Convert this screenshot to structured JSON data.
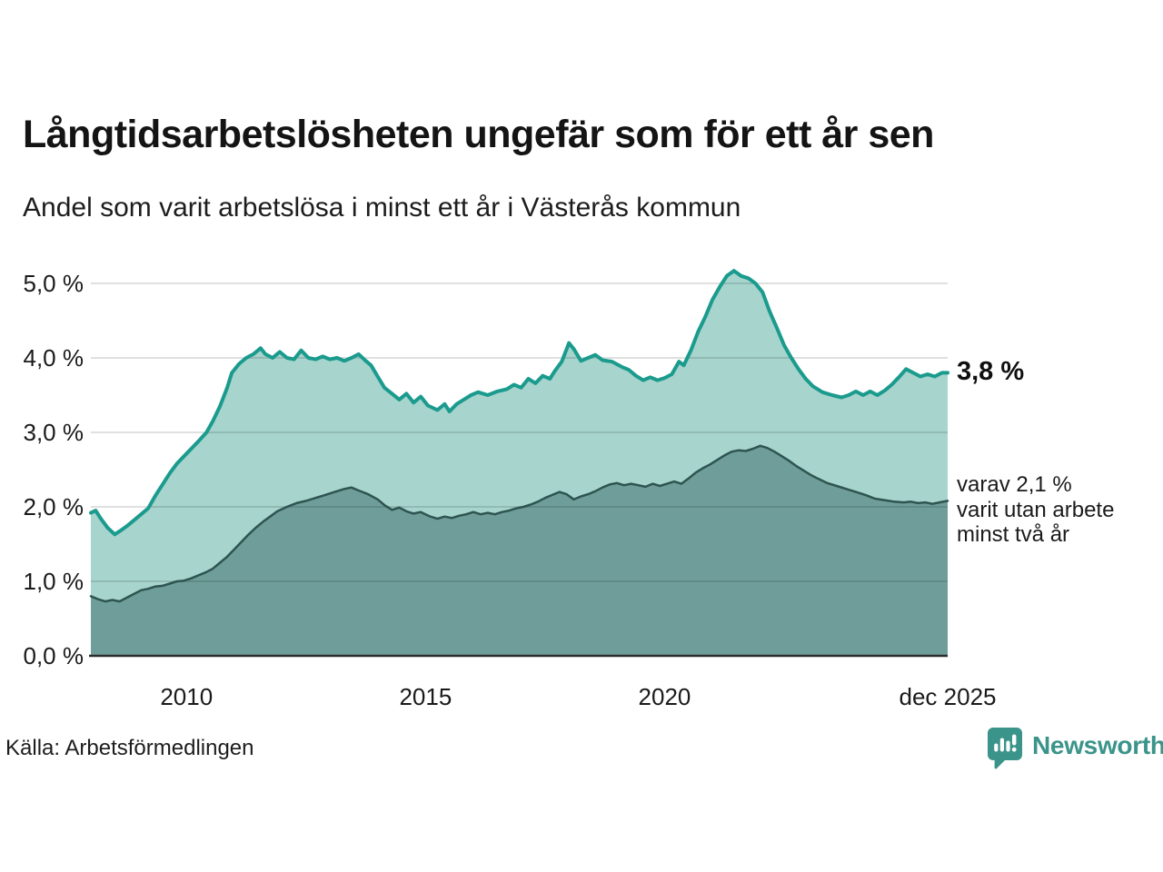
{
  "header": {
    "title": "Långtidsarbetslösheten ungefär som för ett år sen",
    "subtitle": "Andel som varit arbetslösa i minst ett år i Västerås kommun"
  },
  "footer": {
    "source_label": "Källa: Arbetsförmedlingen",
    "brand": {
      "name": "Newsworthy",
      "icon": "newsworthy-speech-bubble-bar-chart-icon",
      "color": "#3b948a"
    }
  },
  "chart_data": {
    "type": "area",
    "title": "Långtidsarbetslösheten ungefär som för ett år sen",
    "subtitle": "Andel som varit arbetslösa i minst ett år i Västerås kommun",
    "grid": true,
    "legend_position": "none",
    "x_axis": {
      "range": [
        2008,
        2025.92
      ],
      "ticks": [
        {
          "label": "2010",
          "year": 2010
        },
        {
          "label": "2015",
          "year": 2015
        },
        {
          "label": "2020",
          "year": 2020
        },
        {
          "label": "dec 2025",
          "year": 2025.92
        }
      ]
    },
    "y_axis": {
      "range": [
        0,
        5.3
      ],
      "unit": "%",
      "ticks": [
        {
          "label": "0,0 %",
          "value": 0
        },
        {
          "label": "1,0 %",
          "value": 1
        },
        {
          "label": "2,0 %",
          "value": 2
        },
        {
          "label": "3,0 %",
          "value": 3
        },
        {
          "label": "4,0 %",
          "value": 4
        },
        {
          "label": "5,0 %",
          "value": 5
        }
      ]
    },
    "annotations": [
      {
        "text": "3,8 %",
        "bold": true,
        "anchor_value": 3.8
      },
      {
        "lines": [
          "varav 2,1 %",
          "varit utan arbete",
          "minst två år"
        ],
        "anchor_value": 2.1
      }
    ],
    "series": [
      {
        "name": "Andel arbetslösa minst ett år",
        "line_color": "#1a9b8d",
        "fill_color": "#a7d4cd",
        "line_width": 4,
        "latest_value": 3.8,
        "points": [
          [
            2008.0,
            1.92
          ],
          [
            2008.1,
            1.95
          ],
          [
            2008.2,
            1.85
          ],
          [
            2008.35,
            1.72
          ],
          [
            2008.5,
            1.63
          ],
          [
            2008.62,
            1.68
          ],
          [
            2008.75,
            1.74
          ],
          [
            2008.9,
            1.82
          ],
          [
            2009.05,
            1.9
          ],
          [
            2009.2,
            1.98
          ],
          [
            2009.35,
            2.15
          ],
          [
            2009.5,
            2.3
          ],
          [
            2009.65,
            2.45
          ],
          [
            2009.8,
            2.58
          ],
          [
            2009.95,
            2.68
          ],
          [
            2010.1,
            2.78
          ],
          [
            2010.25,
            2.88
          ],
          [
            2010.42,
            3.0
          ],
          [
            2010.55,
            3.15
          ],
          [
            2010.7,
            3.35
          ],
          [
            2010.85,
            3.6
          ],
          [
            2010.95,
            3.8
          ],
          [
            2011.1,
            3.92
          ],
          [
            2011.25,
            4.0
          ],
          [
            2011.4,
            4.05
          ],
          [
            2011.55,
            4.13
          ],
          [
            2011.65,
            4.05
          ],
          [
            2011.8,
            4.0
          ],
          [
            2011.95,
            4.08
          ],
          [
            2012.1,
            4.0
          ],
          [
            2012.25,
            3.98
          ],
          [
            2012.4,
            4.1
          ],
          [
            2012.55,
            4.0
          ],
          [
            2012.7,
            3.98
          ],
          [
            2012.85,
            4.02
          ],
          [
            2013.0,
            3.98
          ],
          [
            2013.15,
            4.0
          ],
          [
            2013.3,
            3.96
          ],
          [
            2013.45,
            4.0
          ],
          [
            2013.6,
            4.05
          ],
          [
            2013.75,
            3.96
          ],
          [
            2013.86,
            3.9
          ],
          [
            2014.0,
            3.75
          ],
          [
            2014.14,
            3.6
          ],
          [
            2014.3,
            3.52
          ],
          [
            2014.45,
            3.44
          ],
          [
            2014.6,
            3.52
          ],
          [
            2014.75,
            3.4
          ],
          [
            2014.9,
            3.48
          ],
          [
            2015.05,
            3.36
          ],
          [
            2015.25,
            3.3
          ],
          [
            2015.4,
            3.38
          ],
          [
            2015.5,
            3.28
          ],
          [
            2015.65,
            3.38
          ],
          [
            2015.8,
            3.44
          ],
          [
            2015.95,
            3.5
          ],
          [
            2016.1,
            3.54
          ],
          [
            2016.3,
            3.5
          ],
          [
            2016.5,
            3.55
          ],
          [
            2016.7,
            3.58
          ],
          [
            2016.85,
            3.64
          ],
          [
            2017.0,
            3.6
          ],
          [
            2017.15,
            3.72
          ],
          [
            2017.3,
            3.66
          ],
          [
            2017.45,
            3.76
          ],
          [
            2017.6,
            3.72
          ],
          [
            2017.7,
            3.82
          ],
          [
            2017.85,
            3.95
          ],
          [
            2018.0,
            4.2
          ],
          [
            2018.1,
            4.12
          ],
          [
            2018.25,
            3.96
          ],
          [
            2018.4,
            4.0
          ],
          [
            2018.55,
            4.04
          ],
          [
            2018.7,
            3.97
          ],
          [
            2018.9,
            3.95
          ],
          [
            2019.1,
            3.88
          ],
          [
            2019.25,
            3.84
          ],
          [
            2019.4,
            3.76
          ],
          [
            2019.55,
            3.7
          ],
          [
            2019.7,
            3.74
          ],
          [
            2019.85,
            3.7
          ],
          [
            2020.0,
            3.73
          ],
          [
            2020.15,
            3.78
          ],
          [
            2020.3,
            3.95
          ],
          [
            2020.4,
            3.9
          ],
          [
            2020.55,
            4.1
          ],
          [
            2020.7,
            4.35
          ],
          [
            2020.85,
            4.55
          ],
          [
            2021.0,
            4.78
          ],
          [
            2021.15,
            4.95
          ],
          [
            2021.3,
            5.1
          ],
          [
            2021.45,
            5.17
          ],
          [
            2021.6,
            5.1
          ],
          [
            2021.75,
            5.07
          ],
          [
            2021.9,
            5.0
          ],
          [
            2022.05,
            4.88
          ],
          [
            2022.2,
            4.62
          ],
          [
            2022.35,
            4.4
          ],
          [
            2022.5,
            4.17
          ],
          [
            2022.65,
            4.0
          ],
          [
            2022.8,
            3.85
          ],
          [
            2022.95,
            3.72
          ],
          [
            2023.1,
            3.62
          ],
          [
            2023.3,
            3.54
          ],
          [
            2023.5,
            3.5
          ],
          [
            2023.7,
            3.47
          ],
          [
            2023.85,
            3.5
          ],
          [
            2024.0,
            3.55
          ],
          [
            2024.15,
            3.5
          ],
          [
            2024.3,
            3.55
          ],
          [
            2024.45,
            3.5
          ],
          [
            2024.6,
            3.56
          ],
          [
            2024.75,
            3.64
          ],
          [
            2024.9,
            3.74
          ],
          [
            2025.05,
            3.85
          ],
          [
            2025.2,
            3.8
          ],
          [
            2025.35,
            3.75
          ],
          [
            2025.5,
            3.78
          ],
          [
            2025.65,
            3.75
          ],
          [
            2025.8,
            3.8
          ],
          [
            2025.92,
            3.8
          ]
        ]
      },
      {
        "name": "varav utan arbete minst två år",
        "line_color": "#2e5450",
        "fill_color": "#6f9e9a",
        "line_width": 2.5,
        "latest_value": 2.1,
        "points": [
          [
            2008.0,
            0.8
          ],
          [
            2008.15,
            0.76
          ],
          [
            2008.3,
            0.73
          ],
          [
            2008.45,
            0.75
          ],
          [
            2008.6,
            0.73
          ],
          [
            2008.75,
            0.78
          ],
          [
            2008.9,
            0.83
          ],
          [
            2009.05,
            0.88
          ],
          [
            2009.2,
            0.9
          ],
          [
            2009.35,
            0.93
          ],
          [
            2009.5,
            0.94
          ],
          [
            2009.65,
            0.97
          ],
          [
            2009.8,
            1.0
          ],
          [
            2009.95,
            1.01
          ],
          [
            2010.1,
            1.04
          ],
          [
            2010.25,
            1.08
          ],
          [
            2010.4,
            1.12
          ],
          [
            2010.55,
            1.17
          ],
          [
            2010.7,
            1.25
          ],
          [
            2010.85,
            1.33
          ],
          [
            2011.0,
            1.43
          ],
          [
            2011.15,
            1.53
          ],
          [
            2011.3,
            1.63
          ],
          [
            2011.45,
            1.72
          ],
          [
            2011.6,
            1.8
          ],
          [
            2011.75,
            1.87
          ],
          [
            2011.9,
            1.94
          ],
          [
            2012.1,
            2.0
          ],
          [
            2012.3,
            2.05
          ],
          [
            2012.5,
            2.08
          ],
          [
            2012.7,
            2.12
          ],
          [
            2012.9,
            2.16
          ],
          [
            2013.1,
            2.2
          ],
          [
            2013.3,
            2.24
          ],
          [
            2013.45,
            2.26
          ],
          [
            2013.6,
            2.22
          ],
          [
            2013.8,
            2.17
          ],
          [
            2014.0,
            2.1
          ],
          [
            2014.15,
            2.02
          ],
          [
            2014.3,
            1.96
          ],
          [
            2014.45,
            1.99
          ],
          [
            2014.6,
            1.94
          ],
          [
            2014.75,
            1.91
          ],
          [
            2014.9,
            1.93
          ],
          [
            2015.1,
            1.87
          ],
          [
            2015.25,
            1.84
          ],
          [
            2015.4,
            1.87
          ],
          [
            2015.55,
            1.85
          ],
          [
            2015.7,
            1.88
          ],
          [
            2015.85,
            1.9
          ],
          [
            2016.0,
            1.93
          ],
          [
            2016.15,
            1.9
          ],
          [
            2016.3,
            1.92
          ],
          [
            2016.45,
            1.9
          ],
          [
            2016.6,
            1.93
          ],
          [
            2016.75,
            1.95
          ],
          [
            2016.9,
            1.98
          ],
          [
            2017.05,
            2.0
          ],
          [
            2017.2,
            2.03
          ],
          [
            2017.35,
            2.07
          ],
          [
            2017.5,
            2.12
          ],
          [
            2017.65,
            2.16
          ],
          [
            2017.8,
            2.2
          ],
          [
            2017.95,
            2.17
          ],
          [
            2018.1,
            2.1
          ],
          [
            2018.25,
            2.14
          ],
          [
            2018.4,
            2.17
          ],
          [
            2018.55,
            2.21
          ],
          [
            2018.7,
            2.26
          ],
          [
            2018.85,
            2.3
          ],
          [
            2019.0,
            2.32
          ],
          [
            2019.15,
            2.29
          ],
          [
            2019.3,
            2.31
          ],
          [
            2019.45,
            2.29
          ],
          [
            2019.6,
            2.27
          ],
          [
            2019.75,
            2.31
          ],
          [
            2019.9,
            2.28
          ],
          [
            2020.05,
            2.31
          ],
          [
            2020.2,
            2.34
          ],
          [
            2020.35,
            2.31
          ],
          [
            2020.5,
            2.38
          ],
          [
            2020.65,
            2.46
          ],
          [
            2020.8,
            2.52
          ],
          [
            2020.95,
            2.57
          ],
          [
            2021.1,
            2.63
          ],
          [
            2021.25,
            2.69
          ],
          [
            2021.4,
            2.74
          ],
          [
            2021.55,
            2.76
          ],
          [
            2021.7,
            2.75
          ],
          [
            2021.85,
            2.78
          ],
          [
            2022.0,
            2.82
          ],
          [
            2022.15,
            2.79
          ],
          [
            2022.3,
            2.74
          ],
          [
            2022.45,
            2.68
          ],
          [
            2022.6,
            2.62
          ],
          [
            2022.75,
            2.55
          ],
          [
            2022.9,
            2.49
          ],
          [
            2023.05,
            2.43
          ],
          [
            2023.2,
            2.38
          ],
          [
            2023.4,
            2.32
          ],
          [
            2023.6,
            2.28
          ],
          [
            2023.8,
            2.24
          ],
          [
            2024.0,
            2.2
          ],
          [
            2024.2,
            2.16
          ],
          [
            2024.4,
            2.11
          ],
          [
            2024.6,
            2.09
          ],
          [
            2024.8,
            2.07
          ],
          [
            2025.0,
            2.06
          ],
          [
            2025.15,
            2.07
          ],
          [
            2025.3,
            2.05
          ],
          [
            2025.45,
            2.06
          ],
          [
            2025.6,
            2.04
          ],
          [
            2025.75,
            2.06
          ],
          [
            2025.92,
            2.08
          ]
        ]
      }
    ]
  }
}
